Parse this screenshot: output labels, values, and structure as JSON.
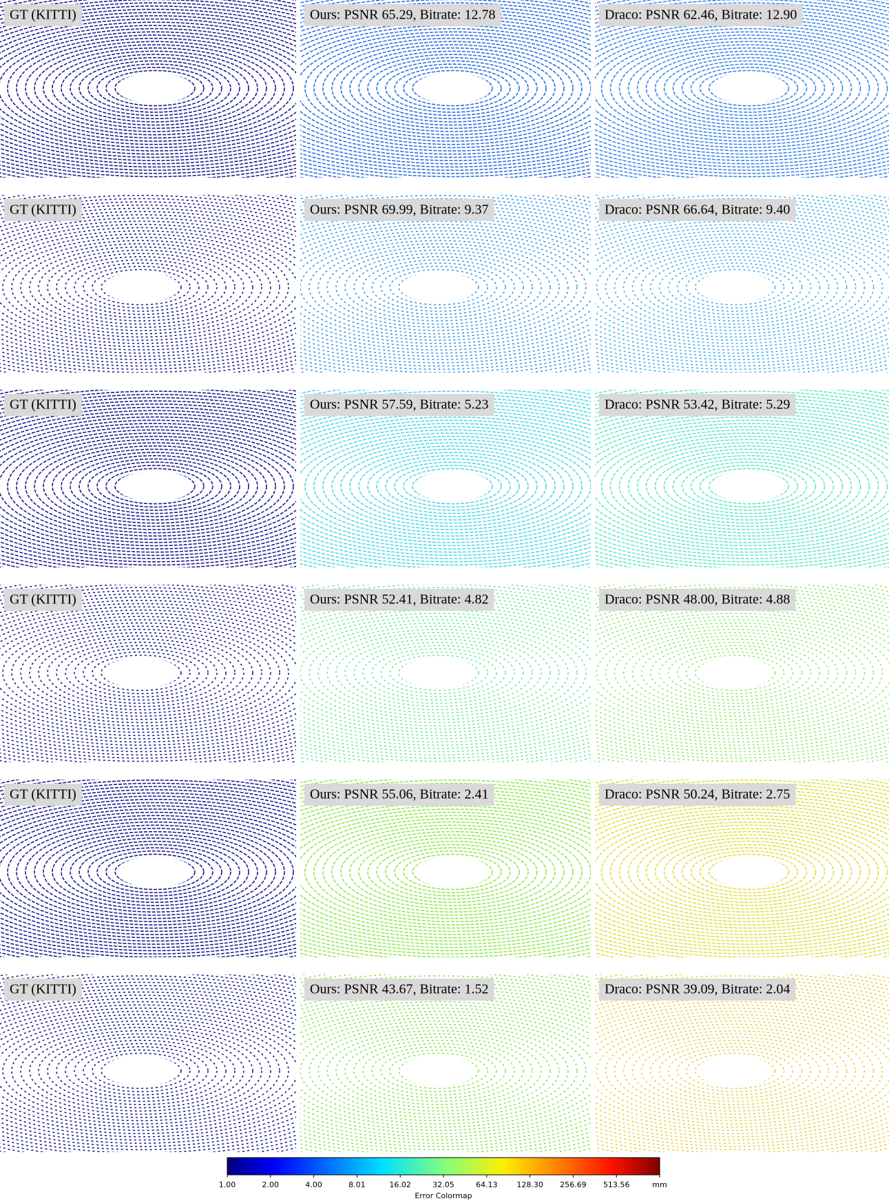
{
  "rows": [
    {
      "panels": [
        {
          "label": "GT (KITTI)"
        },
        {
          "label": "Ours: PSNR 65.29, Bitrate: 12.78"
        },
        {
          "label": "Draco: PSNR 62.46, Bitrate: 12.90"
        }
      ]
    },
    {
      "panels": [
        {
          "label": "GT (KITTI)"
        },
        {
          "label": "Ours: PSNR 69.99, Bitrate: 9.37"
        },
        {
          "label": "Draco: PSNR 66.64, Bitrate: 9.40"
        }
      ]
    },
    {
      "panels": [
        {
          "label": "GT (KITTI)"
        },
        {
          "label": "Ours: PSNR 57.59, Bitrate: 5.23"
        },
        {
          "label": "Draco: PSNR 53.42, Bitrate: 5.29"
        }
      ]
    },
    {
      "panels": [
        {
          "label": "GT (KITTI)"
        },
        {
          "label": "Ours: PSNR 52.41, Bitrate: 4.82"
        },
        {
          "label": "Draco: PSNR 48.00, Bitrate: 4.88"
        }
      ]
    },
    {
      "panels": [
        {
          "label": "GT (KITTI)"
        },
        {
          "label": "Ours: PSNR 55.06, Bitrate: 2.41"
        },
        {
          "label": "Draco: PSNR 50.24, Bitrate: 2.75"
        }
      ]
    },
    {
      "panels": [
        {
          "label": "GT (KITTI)"
        },
        {
          "label": "Ours: PSNR 43.67, Bitrate: 1.52"
        },
        {
          "label": "Draco: PSNR 39.09, Bitrate: 2.04"
        }
      ]
    }
  ],
  "colorbar": {
    "ticks": [
      "1.00",
      "2.00",
      "4.00",
      "8.01",
      "16.02",
      "32.05",
      "64.13",
      "128.30",
      "256.69",
      "513.56"
    ],
    "unit": "mm",
    "title": "Error Colormap"
  }
}
